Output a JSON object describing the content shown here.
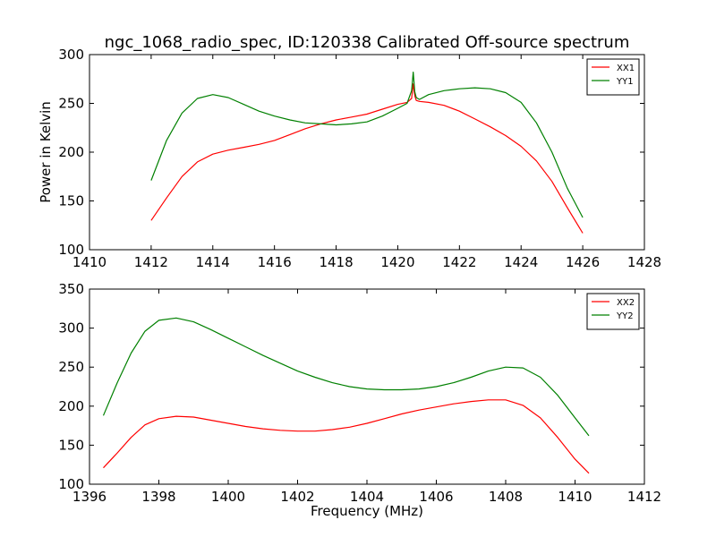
{
  "figure": {
    "title": "ngc_1068_radio_spec, ID:120338 Calibrated Off-source spectrum",
    "ylabel": "Power in Kelvin",
    "xlabel": "Frequency (MHz)"
  },
  "chart_data": [
    {
      "type": "line",
      "title": "ngc_1068_radio_spec, ID:120338 Calibrated Off-source spectrum",
      "xlabel": "",
      "ylabel": "Power in Kelvin",
      "xlim": [
        1410,
        1428
      ],
      "ylim": [
        100,
        300
      ],
      "xticks": [
        1410,
        1412,
        1414,
        1416,
        1418,
        1420,
        1422,
        1424,
        1426,
        1428
      ],
      "yticks": [
        100,
        150,
        200,
        250,
        300
      ],
      "grid": false,
      "legend": "top-right",
      "series": [
        {
          "name": "XX1",
          "color": "#ff0000",
          "x": [
            1412,
            1412.5,
            1413,
            1413.5,
            1414,
            1414.5,
            1415,
            1415.5,
            1416,
            1416.5,
            1417,
            1417.5,
            1418,
            1418.5,
            1419,
            1419.5,
            1420,
            1420.3,
            1420.45,
            1420.5,
            1420.55,
            1420.6,
            1420.7,
            1421,
            1421.5,
            1422,
            1422.5,
            1423,
            1423.5,
            1424,
            1424.5,
            1425,
            1425.5,
            1426
          ],
          "y": [
            130,
            153,
            175,
            190,
            198,
            202,
            205,
            208,
            212,
            218,
            224,
            229,
            233,
            236,
            239,
            244,
            249,
            251,
            255,
            270,
            258,
            253,
            252,
            251,
            248,
            242,
            234,
            226,
            217,
            206,
            191,
            170,
            143,
            117
          ]
        },
        {
          "name": "YY1",
          "color": "#008000",
          "x": [
            1412,
            1412.5,
            1413,
            1413.5,
            1414,
            1414.5,
            1415,
            1415.5,
            1416,
            1416.5,
            1417,
            1417.5,
            1418,
            1418.5,
            1419,
            1419.5,
            1420,
            1420.3,
            1420.45,
            1420.5,
            1420.55,
            1420.6,
            1420.7,
            1421,
            1421.5,
            1422,
            1422.5,
            1423,
            1423.5,
            1424,
            1424.5,
            1425,
            1425.5,
            1426
          ],
          "y": [
            171,
            212,
            240,
            255,
            259,
            256,
            249,
            242,
            237,
            233,
            230,
            229,
            228,
            229,
            231,
            237,
            245,
            250,
            263,
            282,
            262,
            256,
            254,
            259,
            263,
            265,
            266,
            265,
            261,
            251,
            230,
            200,
            163,
            133
          ]
        }
      ]
    },
    {
      "type": "line",
      "title": "",
      "xlabel": "Frequency (MHz)",
      "ylabel": "",
      "xlim": [
        1396,
        1412
      ],
      "ylim": [
        100,
        350
      ],
      "xticks": [
        1396,
        1398,
        1400,
        1402,
        1404,
        1406,
        1408,
        1410,
        1412
      ],
      "yticks": [
        100,
        150,
        200,
        250,
        300,
        350
      ],
      "grid": false,
      "legend": "top-right",
      "series": [
        {
          "name": "XX2",
          "color": "#ff0000",
          "x": [
            1396.4,
            1396.8,
            1397.2,
            1397.6,
            1398,
            1398.5,
            1399,
            1399.5,
            1400,
            1400.5,
            1401,
            1401.5,
            1402,
            1402.5,
            1403,
            1403.5,
            1404,
            1404.5,
            1405,
            1405.5,
            1406,
            1406.5,
            1407,
            1407.5,
            1408,
            1408.5,
            1409,
            1409.5,
            1410,
            1410.4
          ],
          "y": [
            121,
            140,
            160,
            176,
            184,
            187,
            186,
            182,
            178,
            174,
            171,
            169,
            168,
            168,
            170,
            173,
            178,
            184,
            190,
            195,
            199,
            203,
            206,
            208,
            208,
            201,
            185,
            160,
            132,
            114
          ]
        },
        {
          "name": "YY2",
          "color": "#008000",
          "x": [
            1396.4,
            1396.8,
            1397.2,
            1397.6,
            1398,
            1398.5,
            1399,
            1399.5,
            1400,
            1400.5,
            1401,
            1401.5,
            1402,
            1402.5,
            1403,
            1403.5,
            1404,
            1404.5,
            1405,
            1405.5,
            1406,
            1406.5,
            1407,
            1407.5,
            1408,
            1408.5,
            1409,
            1409.5,
            1410,
            1410.4
          ],
          "y": [
            188,
            230,
            268,
            296,
            310,
            313,
            308,
            298,
            287,
            276,
            265,
            255,
            245,
            237,
            230,
            225,
            222,
            221,
            221,
            222,
            225,
            230,
            237,
            245,
            250,
            249,
            237,
            214,
            185,
            162
          ]
        }
      ]
    }
  ]
}
